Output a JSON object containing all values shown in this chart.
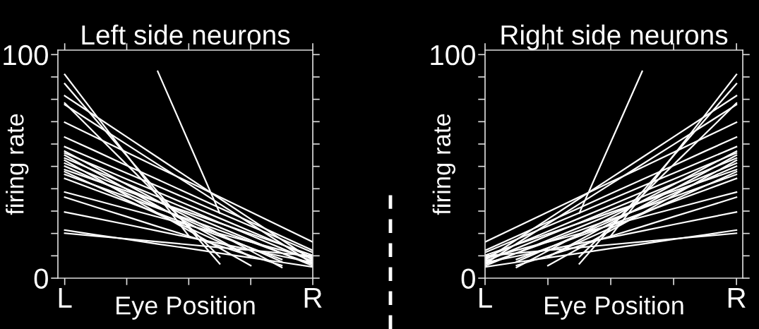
{
  "chart_data": [
    {
      "type": "line",
      "title": "Left side neurons",
      "xlabel": "Eye Position",
      "ylabel": "firing rate",
      "categories": [
        "L",
        null,
        null,
        null,
        null,
        null,
        null,
        null,
        "R"
      ],
      "ylim": [
        0,
        102
      ],
      "yticks": [
        0,
        {
          "value": 10,
          "label": null
        },
        {
          "value": 20,
          "label": null
        },
        {
          "value": 30,
          "label": null
        },
        {
          "value": 40,
          "label": null
        },
        {
          "value": 50,
          "label": null
        },
        {
          "value": 60,
          "label": null
        },
        {
          "value": 70,
          "label": null
        },
        {
          "value": 80,
          "label": null
        },
        {
          "value": 90,
          "label": null
        },
        100
      ],
      "series": [
        {
          "color": "#ffffff",
          "values": [
            91.1,
            73.0,
            55.0,
            36.9,
            18.9,
            null,
            null,
            null,
            null
          ]
        },
        {
          "color": "#ffffff",
          "values": [
            87.0,
            70.9,
            54.8,
            38.6,
            22.5,
            6.4,
            null,
            null,
            null
          ]
        },
        {
          "color": "#ffffff",
          "values": [
            81.6,
            72.4,
            63.2,
            54.0,
            44.8,
            35.6,
            26.4,
            17.2,
            8.0
          ]
        },
        {
          "color": "#ffffff",
          "values": [
            78.3,
            64.5,
            50.8,
            37.0,
            23.2,
            9.5,
            null,
            null,
            null
          ]
        },
        {
          "color": "#ffffff",
          "values": [
            77.6,
            68.7,
            59.8,
            50.9,
            42.1,
            33.2,
            24.3,
            15.4,
            6.5
          ]
        },
        {
          "color": "#ffffff",
          "values": [
            69.7,
            63.0,
            56.3,
            49.6,
            43.0,
            36.3,
            29.6,
            22.9,
            16.2
          ]
        },
        {
          "color": "#ffffff",
          "values": [
            63.1,
            56.8,
            50.4,
            44.1,
            37.8,
            31.4,
            25.1,
            18.7,
            12.4
          ]
        },
        {
          "color": "#ffffff",
          "values": [
            58.8,
            52.9,
            47.0,
            41.1,
            35.2,
            29.2,
            23.3,
            17.4,
            11.5
          ]
        },
        {
          "color": "#ffffff",
          "values": [
            56.8,
            49.4,
            41.9,
            34.5,
            27.1,
            19.7,
            12.2,
            4.8,
            null
          ]
        },
        {
          "color": "#ffffff",
          "values": [
            56.0,
            50.2,
            44.3,
            38.5,
            32.6,
            26.8,
            20.9,
            15.1,
            9.2
          ]
        },
        {
          "color": "#ffffff",
          "values": [
            55.0,
            47.4,
            39.8,
            32.2,
            24.6,
            17.0,
            9.4,
            null,
            null
          ]
        },
        {
          "color": "#ffffff",
          "values": [
            53.7,
            47.9,
            42.2,
            36.4,
            30.6,
            24.8,
            19.1,
            13.3,
            7.5
          ]
        },
        {
          "color": "#ffffff",
          "values": [
            52.7,
            44.9,
            37.0,
            29.1,
            21.3,
            13.4,
            5.6,
            null,
            null
          ]
        },
        {
          "color": "#ffffff",
          "values": [
            51.4,
            45.7,
            39.9,
            34.2,
            28.5,
            22.7,
            17.0,
            11.2,
            5.5
          ]
        },
        {
          "color": "#ffffff",
          "values": [
            50.1,
            44.0,
            37.9,
            31.7,
            25.6,
            19.5,
            13.4,
            7.3,
            null
          ]
        },
        {
          "color": "#ffffff",
          "values": [
            48.5,
            43.7,
            38.9,
            34.1,
            29.4,
            24.6,
            19.8,
            15.0,
            10.2
          ]
        },
        {
          "color": "#ffffff",
          "values": [
            47.6,
            41.3,
            35.0,
            28.7,
            22.4,
            16.1,
            9.8,
            null,
            null
          ]
        },
        {
          "color": "#ffffff",
          "values": [
            46.4,
            41.4,
            36.4,
            31.3,
            26.3,
            21.3,
            16.3,
            11.2,
            6.2
          ]
        },
        {
          "color": "#ffffff",
          "values": [
            44.6,
            39.4,
            34.3,
            29.1,
            23.9,
            18.8,
            13.6,
            8.4,
            null
          ]
        },
        {
          "color": "#ffffff",
          "values": [
            38.5,
            34.8,
            31.1,
            27.4,
            23.7,
            19.9,
            16.2,
            12.5,
            8.8
          ]
        },
        {
          "color": "#ffffff",
          "values": [
            36.2,
            31.8,
            27.5,
            23.1,
            18.8,
            14.4,
            10.0,
            5.7,
            null
          ]
        },
        {
          "color": "#ffffff",
          "values": [
            29.6,
            26.8,
            24.0,
            21.1,
            18.3,
            15.5,
            12.7,
            9.8,
            7.0
          ]
        },
        {
          "color": "#ffffff",
          "values": [
            21.5,
            19.4,
            17.4,
            15.3,
            13.3,
            11.2,
            9.1,
            7.1,
            5.0
          ]
        },
        {
          "color": "#ffffff",
          "values": [
            20.1,
            18.8,
            17.6,
            16.3,
            15.0,
            13.7,
            12.5,
            11.2,
            9.9
          ]
        },
        {
          "color": "#ffffff",
          "values": [
            null,
            null,
            null,
            92.5,
            60.8,
            29.1,
            null,
            null,
            null
          ]
        }
      ]
    },
    {
      "type": "line",
      "title": "Right side neurons",
      "xlabel": "Eye Position",
      "ylabel": "firing rate",
      "categories": [
        "L",
        null,
        null,
        null,
        null,
        null,
        null,
        null,
        "R"
      ],
      "ylim": [
        0,
        102
      ],
      "yticks": [
        0,
        {
          "value": 10,
          "label": null
        },
        {
          "value": 20,
          "label": null
        },
        {
          "value": 30,
          "label": null
        },
        {
          "value": 40,
          "label": null
        },
        {
          "value": 50,
          "label": null
        },
        {
          "value": 60,
          "label": null
        },
        {
          "value": 70,
          "label": null
        },
        {
          "value": 80,
          "label": null
        },
        {
          "value": 90,
          "label": null
        },
        100
      ],
      "series": [
        {
          "color": "#ffffff",
          "values": [
            null,
            null,
            null,
            null,
            18.9,
            36.9,
            55.0,
            73.0,
            91.1
          ]
        },
        {
          "color": "#ffffff",
          "values": [
            null,
            null,
            null,
            6.4,
            22.5,
            38.6,
            54.8,
            70.9,
            87.0
          ]
        },
        {
          "color": "#ffffff",
          "values": [
            8.0,
            17.2,
            26.4,
            35.6,
            44.8,
            54.0,
            63.2,
            72.4,
            81.6
          ]
        },
        {
          "color": "#ffffff",
          "values": [
            null,
            null,
            null,
            9.5,
            23.2,
            37.0,
            50.8,
            64.5,
            78.3
          ]
        },
        {
          "color": "#ffffff",
          "values": [
            6.5,
            15.4,
            24.3,
            33.2,
            42.1,
            50.9,
            59.8,
            68.7,
            77.6
          ]
        },
        {
          "color": "#ffffff",
          "values": [
            16.2,
            22.9,
            29.6,
            36.3,
            43.0,
            49.6,
            56.3,
            63.0,
            69.7
          ]
        },
        {
          "color": "#ffffff",
          "values": [
            12.4,
            18.7,
            25.1,
            31.4,
            37.8,
            44.1,
            50.4,
            56.8,
            63.1
          ]
        },
        {
          "color": "#ffffff",
          "values": [
            11.5,
            17.4,
            23.3,
            29.2,
            35.2,
            41.1,
            47.0,
            52.9,
            58.8
          ]
        },
        {
          "color": "#ffffff",
          "values": [
            null,
            4.8,
            12.2,
            19.7,
            27.1,
            34.5,
            41.9,
            49.4,
            56.8
          ]
        },
        {
          "color": "#ffffff",
          "values": [
            9.2,
            15.1,
            20.9,
            26.8,
            32.6,
            38.5,
            44.3,
            50.2,
            56.0
          ]
        },
        {
          "color": "#ffffff",
          "values": [
            null,
            null,
            9.4,
            17.0,
            24.6,
            32.2,
            39.8,
            47.4,
            55.0
          ]
        },
        {
          "color": "#ffffff",
          "values": [
            7.5,
            13.3,
            19.1,
            24.8,
            30.6,
            36.4,
            42.2,
            47.9,
            53.7
          ]
        },
        {
          "color": "#ffffff",
          "values": [
            null,
            null,
            5.6,
            13.4,
            21.3,
            29.1,
            37.0,
            44.9,
            52.7
          ]
        },
        {
          "color": "#ffffff",
          "values": [
            5.5,
            11.2,
            17.0,
            22.7,
            28.5,
            34.2,
            39.9,
            45.7,
            51.4
          ]
        },
        {
          "color": "#ffffff",
          "values": [
            null,
            7.3,
            13.4,
            19.5,
            25.6,
            31.7,
            37.9,
            44.0,
            50.1
          ]
        },
        {
          "color": "#ffffff",
          "values": [
            10.2,
            15.0,
            19.8,
            24.6,
            29.4,
            34.1,
            38.9,
            43.7,
            48.5
          ]
        },
        {
          "color": "#ffffff",
          "values": [
            null,
            null,
            9.8,
            16.1,
            22.4,
            28.7,
            35.0,
            41.3,
            47.6
          ]
        },
        {
          "color": "#ffffff",
          "values": [
            6.2,
            11.2,
            16.3,
            21.3,
            26.3,
            31.3,
            36.4,
            41.4,
            46.4
          ]
        },
        {
          "color": "#ffffff",
          "values": [
            null,
            8.4,
            13.6,
            18.8,
            23.9,
            29.1,
            34.3,
            39.4,
            44.6
          ]
        },
        {
          "color": "#ffffff",
          "values": [
            8.8,
            12.5,
            16.2,
            19.9,
            23.7,
            27.4,
            31.1,
            34.8,
            38.5
          ]
        },
        {
          "color": "#ffffff",
          "values": [
            null,
            5.7,
            10.0,
            14.4,
            18.8,
            23.1,
            27.5,
            31.8,
            36.2
          ]
        },
        {
          "color": "#ffffff",
          "values": [
            7.0,
            9.8,
            12.7,
            15.5,
            18.3,
            21.1,
            24.0,
            26.8,
            29.6
          ]
        },
        {
          "color": "#ffffff",
          "values": [
            5.0,
            7.1,
            9.1,
            11.2,
            13.3,
            15.3,
            17.4,
            19.4,
            21.5
          ]
        },
        {
          "color": "#ffffff",
          "values": [
            9.9,
            11.2,
            12.5,
            13.7,
            15.0,
            16.3,
            17.6,
            18.8,
            20.1
          ]
        },
        {
          "color": "#ffffff",
          "values": [
            null,
            null,
            null,
            29.1,
            60.8,
            92.5,
            null,
            null,
            null
          ]
        }
      ]
    }
  ]
}
